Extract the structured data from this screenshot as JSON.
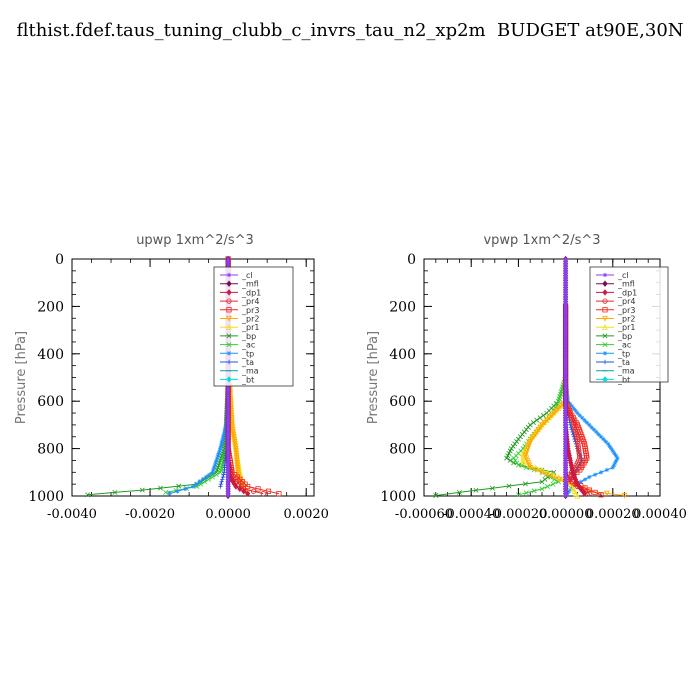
{
  "page": {
    "title": "flthist.fdef.taus_tuning_clubb_c_invrs_tau_n2_xp2m  BUDGET at90E,30N"
  },
  "legend_colors": {
    "_cl": "#8a3ff0",
    "_mfl": "#7a0a50",
    "_dp1": "#cc1a40",
    "_pr4": "#e02a30",
    "_pr3": "#f02a20",
    "_pr2": "#ffaa00",
    "_pr1": "#f0e020",
    "_bp": "#229922",
    "_ac": "#33cc33",
    "_tp": "#1e90ff",
    "_ta": "#2255dd",
    "_ma": "#0aa0a0",
    "_bt": "#00dddd"
  },
  "chart_data": [
    {
      "type": "line",
      "title": "upwp   1xm^2/s^3",
      "ylabel": "Pressure  [hPa]",
      "xlim": [
        -0.004,
        0.0022
      ],
      "ylim": [
        1000,
        0
      ],
      "xticks": [
        -0.004,
        -0.002,
        0.0,
        0.002
      ],
      "xtick_labels": [
        "-0.0040",
        "-0.0020",
        "0.0000",
        "0.0020"
      ],
      "yticks": [
        0,
        200,
        400,
        600,
        800,
        1000
      ],
      "ytick_labels": [
        "0",
        "200",
        "400",
        "600",
        "800",
        "1000"
      ],
      "legend": [
        "_cl",
        "_mfl",
        "_dp1",
        "_pr4",
        "_pr3",
        "_pr2",
        "_pr1",
        "_bp",
        "_ac",
        "_tp",
        "_ta",
        "_ma",
        "_bt"
      ],
      "legend_position": "top-right",
      "series": [
        {
          "name": "_bp",
          "points": [
            [
              0,
              0
            ],
            [
              0,
              500
            ],
            [
              -5e-05,
              700
            ],
            [
              -0.0001,
              800
            ],
            [
              -0.0003,
              900
            ],
            [
              -0.0008,
              950
            ],
            [
              -0.0022,
              975
            ],
            [
              -0.0036,
              995
            ]
          ]
        },
        {
          "name": "_ac",
          "points": [
            [
              0,
              0
            ],
            [
              0,
              600
            ],
            [
              -5e-05,
              800
            ],
            [
              -0.0002,
              900
            ],
            [
              -0.0008,
              960
            ],
            [
              -0.0016,
              985
            ]
          ]
        },
        {
          "name": "_tp",
          "points": [
            [
              0,
              0
            ],
            [
              0,
              500
            ],
            [
              -5e-05,
              700
            ],
            [
              -0.0002,
              800
            ],
            [
              -0.0004,
              900
            ],
            [
              -0.0009,
              960
            ],
            [
              -0.0015,
              990
            ]
          ]
        },
        {
          "name": "_ta",
          "points": [
            [
              0,
              0
            ],
            [
              0,
              600
            ],
            [
              -5e-05,
              800
            ],
            [
              -0.0001,
              900
            ],
            [
              -0.0002,
              960
            ]
          ]
        },
        {
          "name": "_pr1",
          "points": [
            [
              0,
              0
            ],
            [
              0,
              400
            ],
            [
              3e-05,
              500
            ],
            [
              0.0001,
              700
            ],
            [
              0.0002,
              800
            ],
            [
              0.0003,
              900
            ],
            [
              0.0004,
              960
            ]
          ]
        },
        {
          "name": "_pr2",
          "points": [
            [
              0,
              0
            ],
            [
              0,
              400
            ],
            [
              3e-05,
              500
            ],
            [
              0.0001,
              700
            ],
            [
              0.0002,
              800
            ],
            [
              0.00025,
              900
            ],
            [
              0.0003,
              950
            ],
            [
              0.0005,
              985
            ]
          ]
        },
        {
          "name": "_pr3",
          "points": [
            [
              0,
              0
            ],
            [
              0,
              800
            ],
            [
              0.0001,
              900
            ],
            [
              0.0005,
              960
            ],
            [
              0.0013,
              990
            ]
          ]
        },
        {
          "name": "_pr4",
          "points": [
            [
              0,
              0
            ],
            [
              0,
              850
            ],
            [
              0.0001,
              920
            ],
            [
              0.0004,
              970
            ],
            [
              0.0009,
              990
            ]
          ]
        },
        {
          "name": "_dp1",
          "points": [
            [
              0,
              0
            ],
            [
              0,
              850
            ],
            [
              5e-05,
              920
            ],
            [
              0.0002,
              960
            ],
            [
              0.0005,
              990
            ]
          ]
        },
        {
          "name": "_mfl",
          "points": [
            [
              0,
              0
            ],
            [
              0,
              1000
            ]
          ]
        },
        {
          "name": "_cl",
          "points": [
            [
              0,
              0
            ],
            [
              0,
              1000
            ]
          ]
        }
      ]
    },
    {
      "type": "line",
      "title": "vpwp   1xm^2/s^3",
      "ylabel": "Pressure  [hPa]",
      "xlim": [
        -0.0006,
        0.0004
      ],
      "ylim": [
        1000,
        0
      ],
      "xticks": [
        -0.0006,
        -0.0004,
        -0.0002,
        0.0,
        0.0002,
        0.0004
      ],
      "xtick_labels": [
        "-0.00060",
        "-0.00040",
        "-0.00020",
        "0.00000",
        "0.00020",
        "0.00040"
      ],
      "yticks": [
        0,
        200,
        400,
        600,
        800,
        1000
      ],
      "ytick_labels": [
        "0",
        "200",
        "400",
        "600",
        "800",
        "1000"
      ],
      "legend": [
        "_cl",
        "_mfl",
        "_dp1",
        "_pr4",
        "_pr3",
        "_pr2",
        "_pr1",
        "_bp",
        "_ac",
        "_tp",
        "_ta",
        "_ma",
        "_bt"
      ],
      "legend_position": "top-right",
      "series": [
        {
          "name": "_bp",
          "points": [
            [
              0,
              200
            ],
            [
              0,
              500
            ],
            [
              -3e-05,
              600
            ],
            [
              -8e-05,
              650
            ],
            [
              -0.00015,
              700
            ],
            [
              -0.0002,
              760
            ],
            [
              -0.00023,
              800
            ],
            [
              -0.00025,
              840
            ],
            [
              -0.00022,
              860
            ],
            [
              -0.00015,
              880
            ],
            [
              -5e-05,
              900
            ],
            [
              -0.0001,
              940
            ],
            [
              -0.00045,
              985
            ],
            [
              -0.00055,
              998
            ]
          ]
        },
        {
          "name": "_ac",
          "points": [
            [
              0,
              200
            ],
            [
              0,
              500
            ],
            [
              -3e-05,
              600
            ],
            [
              -5e-05,
              650
            ],
            [
              -0.0001,
              700
            ],
            [
              -0.00015,
              760
            ],
            [
              -0.00018,
              800
            ],
            [
              -0.00022,
              840
            ],
            [
              -0.0002,
              870
            ],
            [
              -0.0001,
              900
            ],
            [
              -3e-05,
              940
            ],
            [
              -0.0001,
              970
            ],
            [
              -0.0002,
              995
            ]
          ]
        },
        {
          "name": "_tp",
          "points": [
            [
              0,
              200
            ],
            [
              0,
              500
            ],
            [
              1e-05,
              600
            ],
            [
              5e-05,
              650
            ],
            [
              0.0001,
              700
            ],
            [
              0.00018,
              780
            ],
            [
              0.00022,
              840
            ],
            [
              0.0002,
              880
            ],
            [
              0.0001,
              920
            ],
            [
              3e-05,
              960
            ],
            [
              0,
              1000
            ]
          ]
        },
        {
          "name": "_ta",
          "points": [
            [
              0,
              200
            ],
            [
              0,
              600
            ],
            [
              2e-05,
              700
            ],
            [
              5e-05,
              800
            ],
            [
              7e-05,
              850
            ],
            [
              4e-05,
              900
            ],
            [
              1e-05,
              950
            ],
            [
              0,
              1000
            ]
          ]
        },
        {
          "name": "_pr1",
          "points": [
            [
              0,
              200
            ],
            [
              0,
              600
            ],
            [
              -5e-05,
              650
            ],
            [
              -0.0001,
              700
            ],
            [
              -0.00015,
              760
            ],
            [
              -0.00018,
              820
            ],
            [
              -0.00018,
              860
            ],
            [
              -0.0001,
              890
            ],
            [
              -3e-05,
              920
            ],
            [
              2e-05,
              950
            ],
            [
              5e-05,
              1000
            ]
          ]
        },
        {
          "name": "_pr2",
          "points": [
            [
              0,
              200
            ],
            [
              0,
              600
            ],
            [
              -5e-05,
              650
            ],
            [
              -0.0001,
              700
            ],
            [
              -0.00015,
              770
            ],
            [
              -0.00017,
              830
            ],
            [
              -0.00015,
              880
            ],
            [
              -8e-05,
              910
            ],
            [
              0,
              940
            ],
            [
              0.0001,
              980
            ],
            [
              0.00025,
              998
            ]
          ]
        },
        {
          "name": "_pr3",
          "points": [
            [
              0,
              200
            ],
            [
              0,
              600
            ],
            [
              2e-05,
              650
            ],
            [
              5e-05,
              700
            ],
            [
              8e-05,
              780
            ],
            [
              9e-05,
              840
            ],
            [
              6e-05,
              890
            ],
            [
              1e-05,
              930
            ],
            [
              0.0001,
              975
            ],
            [
              0.00015,
              995
            ]
          ]
        },
        {
          "name": "_pr4",
          "points": [
            [
              0,
              200
            ],
            [
              0,
              620
            ],
            [
              3e-05,
              680
            ],
            [
              5e-05,
              760
            ],
            [
              6e-05,
              840
            ],
            [
              4e-05,
              880
            ],
            [
              1e-05,
              920
            ],
            [
              5e-05,
              960
            ],
            [
              0.0001,
              990
            ]
          ]
        },
        {
          "name": "_dp1",
          "points": [
            [
              0,
              200
            ],
            [
              0,
              700
            ],
            [
              1e-05,
              800
            ],
            [
              3e-05,
              900
            ],
            [
              5e-05,
              950
            ],
            [
              8e-05,
              990
            ]
          ]
        },
        {
          "name": "_mfl",
          "points": [
            [
              0,
              0
            ],
            [
              0,
              1000
            ]
          ]
        },
        {
          "name": "_cl",
          "points": [
            [
              0,
              0
            ],
            [
              0,
              1000
            ]
          ]
        }
      ]
    }
  ]
}
